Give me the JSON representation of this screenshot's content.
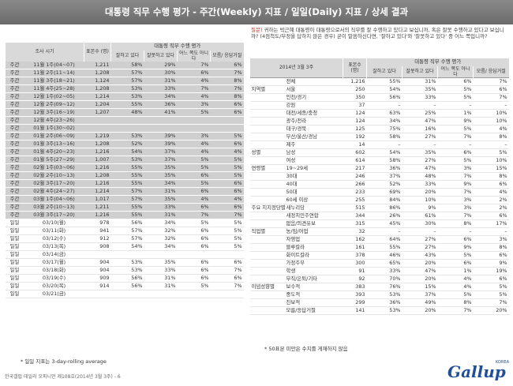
{
  "banner": {
    "title": "대통령 직무 수행 평가 - 주간(Weekly) 지표 / 일일(Daily) 지표 / 상세 결과"
  },
  "left_table": {
    "header": {
      "survey_period": "조사 시기",
      "sample": "표본수\n(명)",
      "group": "대통령 직무 수행 평가",
      "cols": [
        "잘하고\n있다",
        "잘못하고\n있다",
        "어느 쪽도\n아니다",
        "모름/\n응답거절"
      ]
    },
    "rows": [
      [
        "주간",
        "11월 1주(04~07)",
        "1,211",
        "58%",
        "29%",
        "7%",
        "6%",
        "w"
      ],
      [
        "주간",
        "11월 2주(11~14)",
        "1,208",
        "57%",
        "30%",
        "6%",
        "7%",
        "w"
      ],
      [
        "주간",
        "11월 3주(18~21)",
        "1,124",
        "57%",
        "31%",
        "4%",
        "8%",
        "w"
      ],
      [
        "주간",
        "11월 4주(25~28)",
        "1,208",
        "53%",
        "33%",
        "7%",
        "7%",
        "w"
      ],
      [
        "주간",
        "12월 1주(02~05)",
        "1,214",
        "53%",
        "34%",
        "4%",
        "8%",
        "w"
      ],
      [
        "주간",
        "12월 2주(09~12)",
        "1,204",
        "55%",
        "36%",
        "3%",
        "6%",
        "w"
      ],
      [
        "주간",
        "12월 3주(16~19)",
        "1,207",
        "48%",
        "41%",
        "5%",
        "6%",
        "w"
      ],
      [
        "주간",
        "12월 4주(23~26)",
        "",
        "",
        "",
        "",
        "",
        "w"
      ],
      [
        "주간",
        "01월 1주(30~02)",
        "",
        "",
        "",
        "",
        "",
        "w"
      ],
      [
        "주간",
        "01월 2주(06~09)",
        "1,219",
        "53%",
        "39%",
        "3%",
        "5%",
        "w"
      ],
      [
        "주간",
        "01월 3주(13~16)",
        "1,208",
        "52%",
        "39%",
        "4%",
        "6%",
        "w"
      ],
      [
        "주간",
        "01월 4주(20~23)",
        "1,216",
        "54%",
        "37%",
        "4%",
        "4%",
        "w"
      ],
      [
        "주간",
        "01월 5주(27~29)",
        "1,007",
        "53%",
        "37%",
        "5%",
        "5%",
        "w"
      ],
      [
        "주간",
        "02월 1주(03~06)",
        "1,216",
        "55%",
        "35%",
        "5%",
        "5%",
        "w"
      ],
      [
        "주간",
        "02월 2주(10~13)",
        "1,208",
        "55%",
        "35%",
        "6%",
        "5%",
        "w"
      ],
      [
        "주간",
        "02월 3주(17~20)",
        "1,216",
        "55%",
        "34%",
        "5%",
        "6%",
        "w"
      ],
      [
        "주간",
        "02월 4주(24~27)",
        "1,214",
        "57%",
        "31%",
        "6%",
        "6%",
        "w"
      ],
      [
        "주간",
        "03월 1주(04~06)",
        "1,017",
        "57%",
        "35%",
        "4%",
        "4%",
        "w"
      ],
      [
        "주간",
        "03월 2주(10~13)",
        "1,211",
        "55%",
        "33%",
        "6%",
        "6%",
        "w"
      ],
      [
        "주간",
        "03월 3주(17~20)",
        "1,216",
        "55%",
        "31%",
        "7%",
        "7%",
        "w"
      ],
      [
        "일일",
        "03/10(월)",
        "978",
        "56%",
        "34%",
        "5%",
        "5%",
        "d"
      ],
      [
        "일일",
        "03/11(화)",
        "941",
        "57%",
        "32%",
        "6%",
        "5%",
        "d"
      ],
      [
        "일일",
        "03/12(수)",
        "912",
        "57%",
        "32%",
        "6%",
        "5%",
        "d"
      ],
      [
        "일일",
        "03/13(목)",
        "908",
        "54%",
        "34%",
        "6%",
        "5%",
        "d"
      ],
      [
        "일일",
        "03/14(금)",
        "",
        "",
        "",
        "",
        "",
        "d"
      ],
      [
        "일일",
        "03/17(월)",
        "904",
        "53%",
        "35%",
        "6%",
        "6%",
        "d"
      ],
      [
        "일일",
        "03/18(화)",
        "904",
        "53%",
        "33%",
        "6%",
        "7%",
        "d"
      ],
      [
        "일일",
        "03/19(수)",
        "909",
        "56%",
        "31%",
        "6%",
        "6%",
        "d"
      ],
      [
        "일일",
        "03/20(목)",
        "914",
        "56%",
        "31%",
        "5%",
        "7%",
        "d"
      ],
      [
        "일일",
        "03/21(금)",
        "",
        "",
        "",
        "",
        "",
        "d"
      ]
    ]
  },
  "question": {
    "label": "질문)",
    "text": " 귀하는 박근혜 대통령이 대통령으로서의 직무를 잘 수행하고 있다고 보십니까, 혹은 잘못 수행하고 있다고 보십니까? (4점척도/부정을 답하지 않은 경우) 굳이 말씀하신다면, '잘하고 있다'와 '잘못하고 있다' 중 어느 쪽입니까?"
  },
  "right_table": {
    "header": {
      "period": "2014년 3월 3주",
      "sample": "표본수\n(명)",
      "group": "대통령 직무 수행 평가",
      "cols": [
        "잘하고\n있다",
        "잘못하고\n있다",
        "어느 쪽도\n아니다",
        "모름/\n응답거절"
      ]
    },
    "rows": [
      [
        "",
        "전체",
        "1,216",
        "55%",
        "31%",
        "6%",
        "7%"
      ],
      [
        "지역별",
        "서울",
        "250",
        "54%",
        "35%",
        "5%",
        "6%"
      ],
      [
        "",
        "인천/경기",
        "350",
        "56%",
        "33%",
        "5%",
        "7%"
      ],
      [
        "",
        "강원",
        "37",
        "–",
        "–",
        "–",
        "–"
      ],
      [
        "",
        "대전/세종/충청",
        "124",
        "63%",
        "25%",
        "1%",
        "10%"
      ],
      [
        "",
        "광주/전라",
        "124",
        "34%",
        "47%",
        "9%",
        "10%"
      ],
      [
        "",
        "대구/경북",
        "125",
        "75%",
        "16%",
        "5%",
        "4%"
      ],
      [
        "",
        "부산/울산/경남",
        "192",
        "58%",
        "27%",
        "7%",
        "8%"
      ],
      [
        "",
        "제주",
        "14",
        "–",
        "–",
        "–",
        "–"
      ],
      [
        "성별",
        "남성",
        "602",
        "54%",
        "35%",
        "6%",
        "5%"
      ],
      [
        "",
        "여성",
        "614",
        "58%",
        "27%",
        "5%",
        "10%"
      ],
      [
        "연령별",
        "19~29세",
        "217",
        "36%",
        "47%",
        "3%",
        "15%"
      ],
      [
        "",
        "30대",
        "246",
        "37%",
        "48%",
        "7%",
        "8%"
      ],
      [
        "",
        "40대",
        "266",
        "52%",
        "33%",
        "9%",
        "6%"
      ],
      [
        "",
        "50대",
        "233",
        "69%",
        "20%",
        "7%",
        "4%"
      ],
      [
        "",
        "60세 이상",
        "255",
        "84%",
        "10%",
        "3%",
        "2%"
      ],
      [
        "주요\n지지정당별",
        "새누리당",
        "515",
        "86%",
        "9%",
        "3%",
        "2%"
      ],
      [
        "",
        "새정치민주연합",
        "344",
        "26%",
        "61%",
        "7%",
        "6%"
      ],
      [
        "",
        "없음/의견유보",
        "315",
        "45%",
        "30%",
        "8%",
        "17%"
      ],
      [
        "직업별",
        "농/임/어업",
        "32",
        "–",
        "–",
        "–",
        "–"
      ],
      [
        "",
        "자영업",
        "162",
        "64%",
        "27%",
        "6%",
        "3%"
      ],
      [
        "",
        "블루칼라",
        "161",
        "55%",
        "27%",
        "9%",
        "8%"
      ],
      [
        "",
        "화이트칼라",
        "378",
        "46%",
        "43%",
        "5%",
        "6%"
      ],
      [
        "",
        "가정주부",
        "300",
        "65%",
        "20%",
        "6%",
        "9%"
      ],
      [
        "",
        "학생",
        "91",
        "33%",
        "47%",
        "1%",
        "19%"
      ],
      [
        "",
        "무직/은퇴/기타",
        "92",
        "70%",
        "20%",
        "4%",
        "6%"
      ],
      [
        "이념성향별",
        "보수적",
        "383",
        "76%",
        "15%",
        "4%",
        "5%"
      ],
      [
        "",
        "중도적",
        "393",
        "53%",
        "37%",
        "5%",
        "5%"
      ],
      [
        "",
        "진보적",
        "299",
        "36%",
        "49%",
        "8%",
        "7%"
      ],
      [
        "",
        "모름/응답거절",
        "141",
        "53%",
        "20%",
        "7%",
        "20%"
      ]
    ]
  },
  "notes": {
    "left": "* 일일 지표는 3-day-rolling average",
    "right": "* 50표본 미만은 수치를 게재하지 않음"
  },
  "footer": "한국갤럽 데일리 오피니언 제108호(2014년 3월 3주) - 6",
  "logo": {
    "text": "Gallup",
    "sup": "KOREA"
  }
}
